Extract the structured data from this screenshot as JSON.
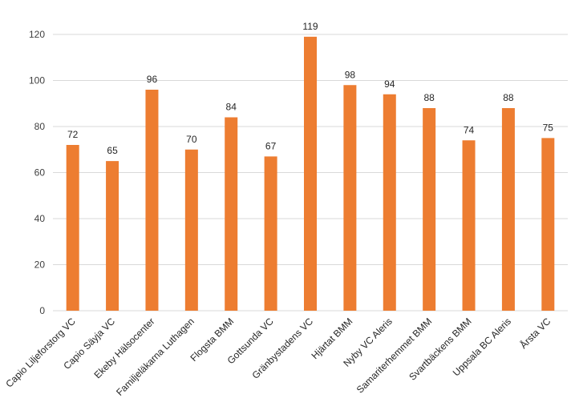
{
  "chart_data": {
    "type": "bar",
    "title": "",
    "xlabel": "",
    "ylabel": "",
    "categories": [
      "Capio Liljeforstorg VC",
      "Capio Säyja VC",
      "Ekeby Hälsocenter",
      "Familjeläkarna Luthagen",
      "Flogsta BMM",
      "Gottsunda  VC",
      "Gränbystadens VC",
      "Hjärtat BMM",
      "Nyby VC Aleris",
      "Samariterhemmet BMM",
      "Svartbäckens BMM",
      "Uppsala BC Aleris",
      "Årsta VC"
    ],
    "values": [
      72,
      65,
      96,
      70,
      84,
      67,
      119,
      98,
      94,
      88,
      74,
      88,
      75
    ],
    "ylim": [
      0,
      120
    ],
    "yticks": [
      0,
      20,
      40,
      60,
      80,
      100,
      120
    ],
    "grid": true,
    "legend": "none",
    "bar_color": "#ED7D31",
    "grid_color": "#D9D9D9"
  }
}
